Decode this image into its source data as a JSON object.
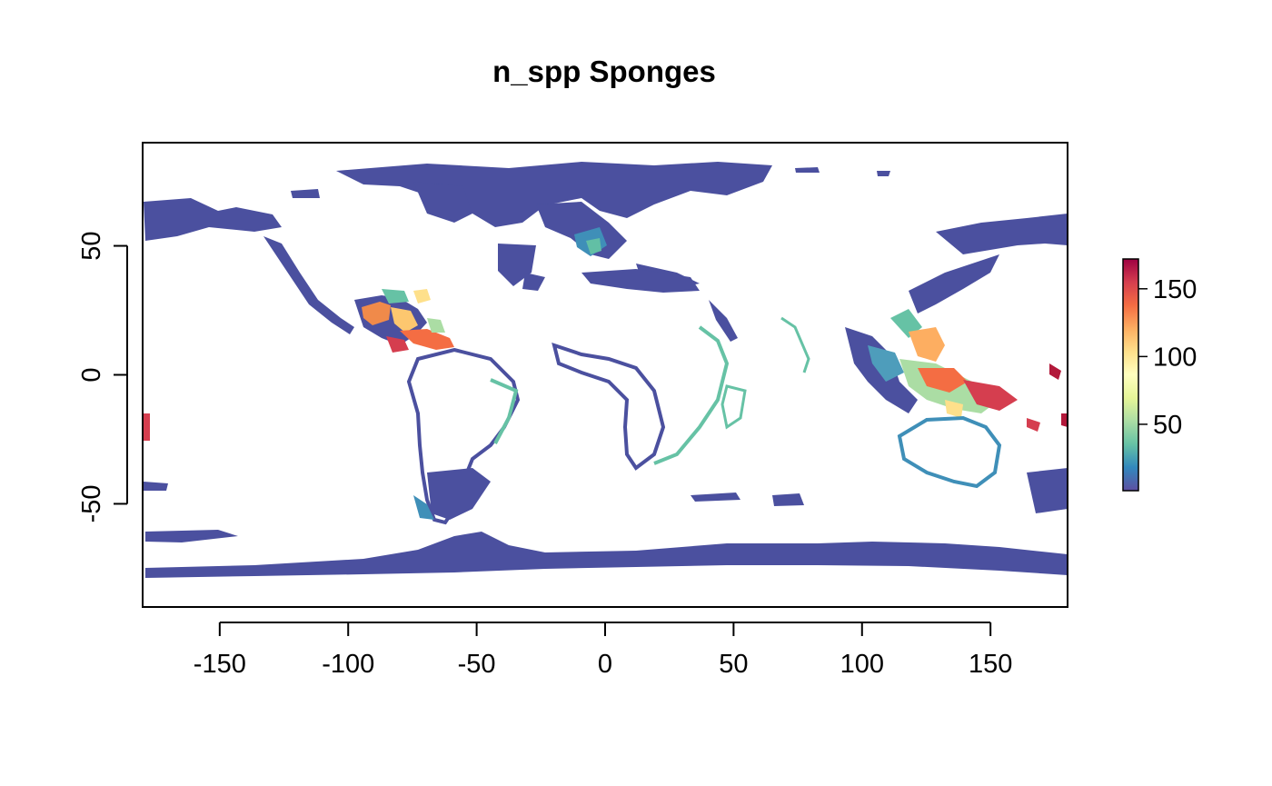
{
  "title": "n_spp Sponges",
  "x_axis": {
    "ticks": [
      {
        "value": -150,
        "label": "-150"
      },
      {
        "value": -100,
        "label": "-100"
      },
      {
        "value": -50,
        "label": "-50"
      },
      {
        "value": 0,
        "label": "0"
      },
      {
        "value": 50,
        "label": "50"
      },
      {
        "value": 100,
        "label": "100"
      },
      {
        "value": 150,
        "label": "150"
      }
    ],
    "range": [
      -180,
      180
    ]
  },
  "y_axis": {
    "ticks": [
      {
        "value": 50,
        "label": "50"
      },
      {
        "value": 0,
        "label": "0"
      },
      {
        "value": -50,
        "label": "-50"
      }
    ],
    "range": [
      -90,
      90
    ]
  },
  "legend": {
    "range": [
      1,
      172
    ],
    "ticks": [
      {
        "value": 150,
        "label": "150"
      },
      {
        "value": 100,
        "label": "100"
      },
      {
        "value": 50,
        "label": "50"
      }
    ],
    "palette": [
      "#5E4FA2",
      "#3288BD",
      "#66C2A5",
      "#ABDDA4",
      "#E6F598",
      "#FFFFBF",
      "#FEE08B",
      "#FDAE61",
      "#F46D43",
      "#D53E4F",
      "#9E0142"
    ],
    "placement": "right"
  },
  "colors": {
    "low": "#4A509E",
    "mid": "#66C2A5",
    "high": "#F46D43",
    "max": "#B2183A"
  },
  "chart_data": {
    "type": "heatmap",
    "title": "n_spp Sponges",
    "variable": "n_spp",
    "xlim": [
      -180,
      180
    ],
    "ylim": [
      -90,
      90
    ],
    "value_range": [
      1,
      172
    ],
    "grid": false,
    "legend_position": "right"
  }
}
